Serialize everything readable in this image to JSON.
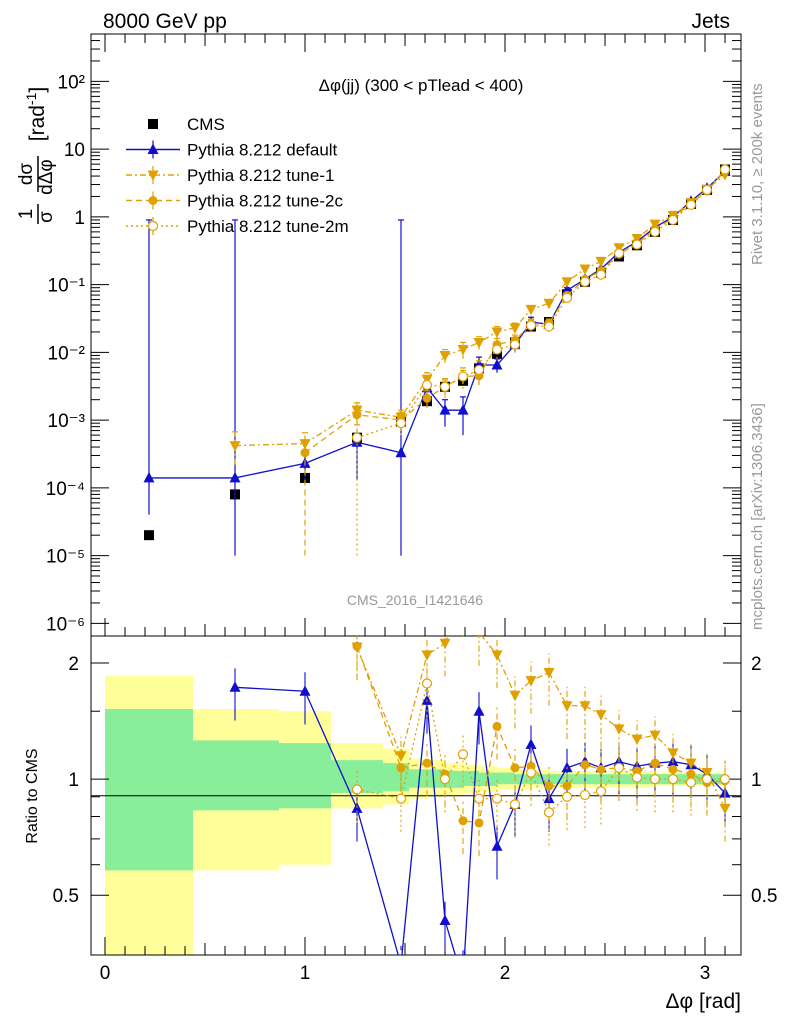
{
  "header": {
    "left": "8000 GeV pp",
    "right": "Jets"
  },
  "side_labels": {
    "rivet": "Rivet 3.1.10, ≥ 200k events",
    "mcplots": "mcplots.cern.ch [arXiv:1306.3436]"
  },
  "watermark": "CMS_2016_I1421646",
  "colors": {
    "cms": "#000000",
    "default": "#1010cc",
    "tune": "#e0a000",
    "band_inner": "#88ee99",
    "band_outer": "#ffff99"
  },
  "chart_data": [
    {
      "type": "scatter",
      "panel": "main",
      "title": "Δφ(jj) (300 < pTlead <  400)",
      "ylabel": "1/σ dσ/dΔφ [rad⁻¹]",
      "yscale": "log",
      "xlim": [
        -0.07,
        3.18
      ],
      "ylim": [
        6.5e-07,
        500
      ],
      "ytick_labels": [
        "10⁻⁶",
        "10⁻⁵",
        "10⁻⁴",
        "10⁻³",
        "10⁻²",
        "10⁻¹",
        "1",
        "10",
        "10²"
      ],
      "legend_position": "top-left",
      "series": [
        {
          "name": "CMS",
          "style": "cms",
          "x": [
            0.22,
            0.65,
            1.0,
            1.26,
            1.48,
            1.61,
            1.7,
            1.79,
            1.87,
            1.96,
            2.05,
            2.13,
            2.22,
            2.31,
            2.4,
            2.48,
            2.57,
            2.66,
            2.75,
            2.84,
            2.93,
            3.01,
            3.1
          ],
          "y": [
            2e-05,
            8e-05,
            0.00014,
            0.00055,
            0.00095,
            0.0019,
            0.0031,
            0.0038,
            0.0058,
            0.0095,
            0.014,
            0.024,
            0.028,
            0.072,
            0.11,
            0.15,
            0.26,
            0.38,
            0.6,
            0.9,
            1.55,
            2.5,
            5.0
          ]
        },
        {
          "name": "Pythia 8.212 default",
          "style": "default",
          "x": [
            0.22,
            0.65,
            1.0,
            1.26,
            1.48,
            1.61,
            1.7,
            1.79,
            1.87,
            1.96,
            2.05,
            2.13,
            2.22,
            2.31,
            2.4,
            2.48,
            2.57,
            2.66,
            2.75,
            2.84,
            2.93,
            3.01,
            3.1
          ],
          "y": [
            0.00014,
            0.00014,
            0.00023,
            0.00047,
            0.00033,
            0.003,
            0.0014,
            0.0014,
            0.0065,
            0.0065,
            0.013,
            0.028,
            0.026,
            0.082,
            0.12,
            0.17,
            0.3,
            0.43,
            0.7,
            1.0,
            1.7,
            2.65,
            4.7
          ],
          "err": [
            [
              0.0001,
              0.9
            ],
            [
              0.00013,
              0.9
            ],
            [
              0.0001,
              0.00012
            ],
            [
              0.00034,
              0.00014
            ],
            [
              0.00032,
              0.9
            ],
            [
              0.001,
              0.0006
            ],
            [
              0.0006,
              0.0006
            ],
            [
              0.0008,
              0.0008
            ],
            [
              0.002,
              0.002
            ],
            [
              0.0015,
              0.0015
            ],
            [
              0.003,
              0.003
            ],
            [
              0.005,
              0.005
            ],
            [
              0.003,
              0.003
            ],
            [
              0.008,
              0.008
            ],
            [
              0.01,
              0.01
            ],
            [
              0.01,
              0.01
            ],
            [
              0.02,
              0.02
            ],
            [
              0.02,
              0.02
            ],
            [
              0.03,
              0.03
            ],
            [
              0.04,
              0.04
            ],
            [
              0.05,
              0.05
            ],
            [
              0.06,
              0.06
            ],
            [
              0.08,
              0.08
            ]
          ]
        },
        {
          "name": "Pythia 8.212 tune-1",
          "style": "tune1",
          "x": [
            0.65,
            1.0,
            1.26,
            1.48,
            1.61,
            1.7,
            1.79,
            1.87,
            1.96,
            2.05,
            2.13,
            2.22,
            2.31,
            2.4,
            2.48,
            2.57,
            2.66,
            2.75,
            2.84,
            2.93,
            3.01,
            3.1
          ],
          "y": [
            0.00042,
            0.00045,
            0.0014,
            0.0011,
            0.004,
            0.009,
            0.011,
            0.014,
            0.02,
            0.023,
            0.043,
            0.053,
            0.11,
            0.17,
            0.22,
            0.35,
            0.48,
            0.78,
            1.05,
            1.62,
            2.55,
            4.2
          ],
          "err": [
            [
              0.0002,
              0.00025
            ],
            [
              0.00015,
              0.0002
            ],
            [
              0.0004,
              0.0004
            ],
            [
              0.0003,
              0.0003
            ],
            [
              0.001,
              0.001
            ],
            [
              0.002,
              0.002
            ],
            [
              0.003,
              0.003
            ],
            [
              0.003,
              0.003
            ],
            [
              0.004,
              0.004
            ],
            [
              0.004,
              0.004
            ],
            [
              0.006,
              0.006
            ],
            [
              0.006,
              0.006
            ],
            [
              0.01,
              0.01
            ],
            [
              0.01,
              0.01
            ],
            [
              0.01,
              0.01
            ],
            [
              0.02,
              0.02
            ],
            [
              0.02,
              0.02
            ],
            [
              0.03,
              0.03
            ],
            [
              0.04,
              0.04
            ],
            [
              0.05,
              0.05
            ],
            [
              0.06,
              0.06
            ],
            [
              0.08,
              0.08
            ]
          ]
        },
        {
          "name": "Pythia 8.212 tune-2c",
          "style": "tune2c",
          "x": [
            1.0,
            1.26,
            1.48,
            1.61,
            1.7,
            1.79,
            1.87,
            1.96,
            2.05,
            2.13,
            2.22,
            2.31,
            2.4,
            2.48,
            2.57,
            2.66,
            2.75,
            2.84,
            2.93,
            3.01,
            3.1
          ],
          "y": [
            0.00033,
            0.0012,
            0.001,
            0.0021,
            0.0031,
            0.0044,
            0.0045,
            0.013,
            0.015,
            0.026,
            0.027,
            0.069,
            0.12,
            0.16,
            0.28,
            0.4,
            0.66,
            0.95,
            1.6,
            2.4,
            4.8
          ],
          "err": [
            [
              0.00032,
              0.00015
            ],
            [
              0.0006,
              0.0004
            ],
            [
              0.0003,
              0.0003
            ],
            [
              0.0006,
              0.0006
            ],
            [
              0.0008,
              0.0008
            ],
            [
              0.001,
              0.001
            ],
            [
              0.0012,
              0.0012
            ],
            [
              0.003,
              0.003
            ],
            [
              0.003,
              0.003
            ],
            [
              0.005,
              0.005
            ],
            [
              0.004,
              0.004
            ],
            [
              0.008,
              0.008
            ],
            [
              0.01,
              0.01
            ],
            [
              0.01,
              0.01
            ],
            [
              0.02,
              0.02
            ],
            [
              0.02,
              0.02
            ],
            [
              0.03,
              0.03
            ],
            [
              0.04,
              0.04
            ],
            [
              0.05,
              0.05
            ],
            [
              0.06,
              0.06
            ],
            [
              0.08,
              0.08
            ]
          ]
        },
        {
          "name": "Pythia 8.212 tune-2m",
          "style": "tune2m",
          "x": [
            1.26,
            1.48,
            1.61,
            1.7,
            1.79,
            1.87,
            1.96,
            2.05,
            2.13,
            2.22,
            2.31,
            2.4,
            2.48,
            2.57,
            2.66,
            2.75,
            2.84,
            2.93,
            3.01,
            3.1
          ],
          "y": [
            0.00055,
            0.0009,
            0.0033,
            0.0031,
            0.0044,
            0.0055,
            0.011,
            0.013,
            0.025,
            0.024,
            0.064,
            0.11,
            0.14,
            0.29,
            0.39,
            0.6,
            0.9,
            1.5,
            2.5,
            5.0
          ],
          "err": [
            [
              0.00054,
              0.0003
            ],
            [
              0.0003,
              0.0003
            ],
            [
              0.001,
              0.001
            ],
            [
              0.001,
              0.001
            ],
            [
              0.0015,
              0.0015
            ],
            [
              0.002,
              0.002
            ],
            [
              0.003,
              0.003
            ],
            [
              0.003,
              0.003
            ],
            [
              0.005,
              0.005
            ],
            [
              0.004,
              0.004
            ],
            [
              0.008,
              0.008
            ],
            [
              0.01,
              0.01
            ],
            [
              0.01,
              0.01
            ],
            [
              0.02,
              0.02
            ],
            [
              0.02,
              0.02
            ],
            [
              0.03,
              0.03
            ],
            [
              0.04,
              0.04
            ],
            [
              0.05,
              0.05
            ],
            [
              0.06,
              0.06
            ],
            [
              0.08,
              0.08
            ]
          ]
        }
      ]
    },
    {
      "type": "line",
      "panel": "ratio",
      "ylabel": "Ratio to CMS",
      "xlabel": "Δφ [rad]",
      "xlim": [
        -0.07,
        3.18
      ],
      "ylim": [
        0.35,
        2.35
      ],
      "xticks": [
        0,
        1,
        2,
        3
      ],
      "yticks": [
        0.5,
        1,
        2
      ],
      "bands": {
        "edges": [
          0.0,
          0.44,
          0.87,
          1.13,
          1.39,
          1.52,
          1.61,
          1.7,
          1.79,
          1.87,
          1.96,
          2.05,
          2.13,
          2.22,
          2.31,
          2.4,
          2.48,
          2.57,
          2.66,
          2.75,
          2.84,
          2.93,
          3.01,
          3.1
        ],
        "inner": [
          [
            0.58,
            1.52
          ],
          [
            0.83,
            1.26
          ],
          [
            0.84,
            1.24
          ],
          [
            0.92,
            1.12
          ],
          [
            0.93,
            1.1
          ],
          [
            0.95,
            1.06
          ],
          [
            0.95,
            1.06
          ],
          [
            0.95,
            1.05
          ],
          [
            0.96,
            1.05
          ],
          [
            0.96,
            1.04
          ],
          [
            0.97,
            1.04
          ],
          [
            0.97,
            1.03
          ],
          [
            0.97,
            1.03
          ],
          [
            0.97,
            1.03
          ],
          [
            0.97,
            1.03
          ],
          [
            0.97,
            1.03
          ],
          [
            0.97,
            1.03
          ],
          [
            0.97,
            1.03
          ],
          [
            0.97,
            1.03
          ],
          [
            0.97,
            1.03
          ],
          [
            0.97,
            1.03
          ],
          [
            0.97,
            1.03
          ],
          [
            0.97,
            1.03
          ]
        ],
        "outer": [
          [
            0.2,
            1.85
          ],
          [
            0.58,
            1.52
          ],
          [
            0.6,
            1.5
          ],
          [
            0.84,
            1.24
          ],
          [
            0.86,
            1.2
          ],
          [
            0.89,
            1.13
          ],
          [
            0.9,
            1.12
          ],
          [
            0.91,
            1.1
          ],
          [
            0.92,
            1.09
          ],
          [
            0.93,
            1.08
          ],
          [
            0.94,
            1.07
          ],
          [
            0.94,
            1.06
          ],
          [
            0.95,
            1.06
          ],
          [
            0.95,
            1.05
          ],
          [
            0.95,
            1.05
          ],
          [
            0.95,
            1.05
          ],
          [
            0.95,
            1.05
          ],
          [
            0.95,
            1.05
          ],
          [
            0.95,
            1.05
          ],
          [
            0.96,
            1.04
          ],
          [
            0.96,
            1.04
          ],
          [
            0.96,
            1.04
          ],
          [
            0.96,
            1.04
          ]
        ]
      },
      "series": [
        {
          "name": "Pythia 8.212 default",
          "style": "default",
          "x": [
            0.65,
            1.0,
            1.26,
            1.48,
            1.61,
            1.7,
            1.79,
            1.87,
            1.96,
            2.05,
            2.13,
            2.22,
            2.31,
            2.4,
            2.48,
            2.57,
            2.66,
            2.75,
            2.84,
            2.93,
            3.01,
            3.1
          ],
          "y": [
            1.73,
            1.69,
            0.84,
            0.33,
            1.6,
            0.43,
            0.3,
            1.5,
            0.67,
            0.86,
            1.23,
            0.89,
            1.07,
            1.11,
            1.07,
            1.11,
            1.08,
            1.1,
            1.11,
            1.09,
            1.03,
            0.92
          ]
        },
        {
          "name": "Pythia 8.212 tune-1",
          "style": "tune1",
          "x": [
            1.26,
            1.48,
            1.61,
            1.7,
            1.79,
            1.87,
            1.96,
            2.05,
            2.13,
            2.22,
            2.31,
            2.4,
            2.48,
            2.57,
            2.66,
            2.75,
            2.84,
            2.93,
            3.01,
            3.1
          ],
          "y": [
            2.2,
            1.15,
            2.1,
            2.25,
            2.85,
            2.4,
            2.1,
            1.65,
            1.8,
            1.89,
            1.55,
            1.55,
            1.47,
            1.35,
            1.27,
            1.3,
            1.17,
            1.1,
            1.04,
            0.84
          ]
        },
        {
          "name": "Pythia 8.212 tune-2c",
          "style": "tune2c",
          "x": [
            1.26,
            1.48,
            1.61,
            1.7,
            1.79,
            1.87,
            1.96,
            2.05,
            2.13,
            2.22,
            2.31,
            2.4,
            2.48,
            2.57,
            2.66,
            2.75,
            2.84,
            2.93,
            3.01,
            3.1
          ],
          "y": [
            2.21,
            1.07,
            1.1,
            1.03,
            0.78,
            0.77,
            1.37,
            1.07,
            1.08,
            0.96,
            0.96,
            1.09,
            1.06,
            1.07,
            1.05,
            1.1,
            1.06,
            1.03,
            0.98,
            0.99
          ]
        },
        {
          "name": "Pythia 8.212 tune-2m",
          "style": "tune2m",
          "x": [
            1.26,
            1.48,
            1.61,
            1.7,
            1.79,
            1.87,
            1.96,
            2.05,
            2.13,
            2.22,
            2.31,
            2.4,
            2.48,
            2.57,
            2.66,
            2.75,
            2.84,
            2.93,
            3.01,
            3.1
          ],
          "y": [
            0.94,
            0.89,
            1.77,
            1.0,
            1.16,
            0.89,
            0.89,
            0.86,
            1.04,
            0.82,
            0.9,
            0.91,
            0.93,
            1.07,
            1.01,
            1.0,
            1.0,
            0.98,
            1.0,
            1.0
          ]
        }
      ]
    }
  ]
}
